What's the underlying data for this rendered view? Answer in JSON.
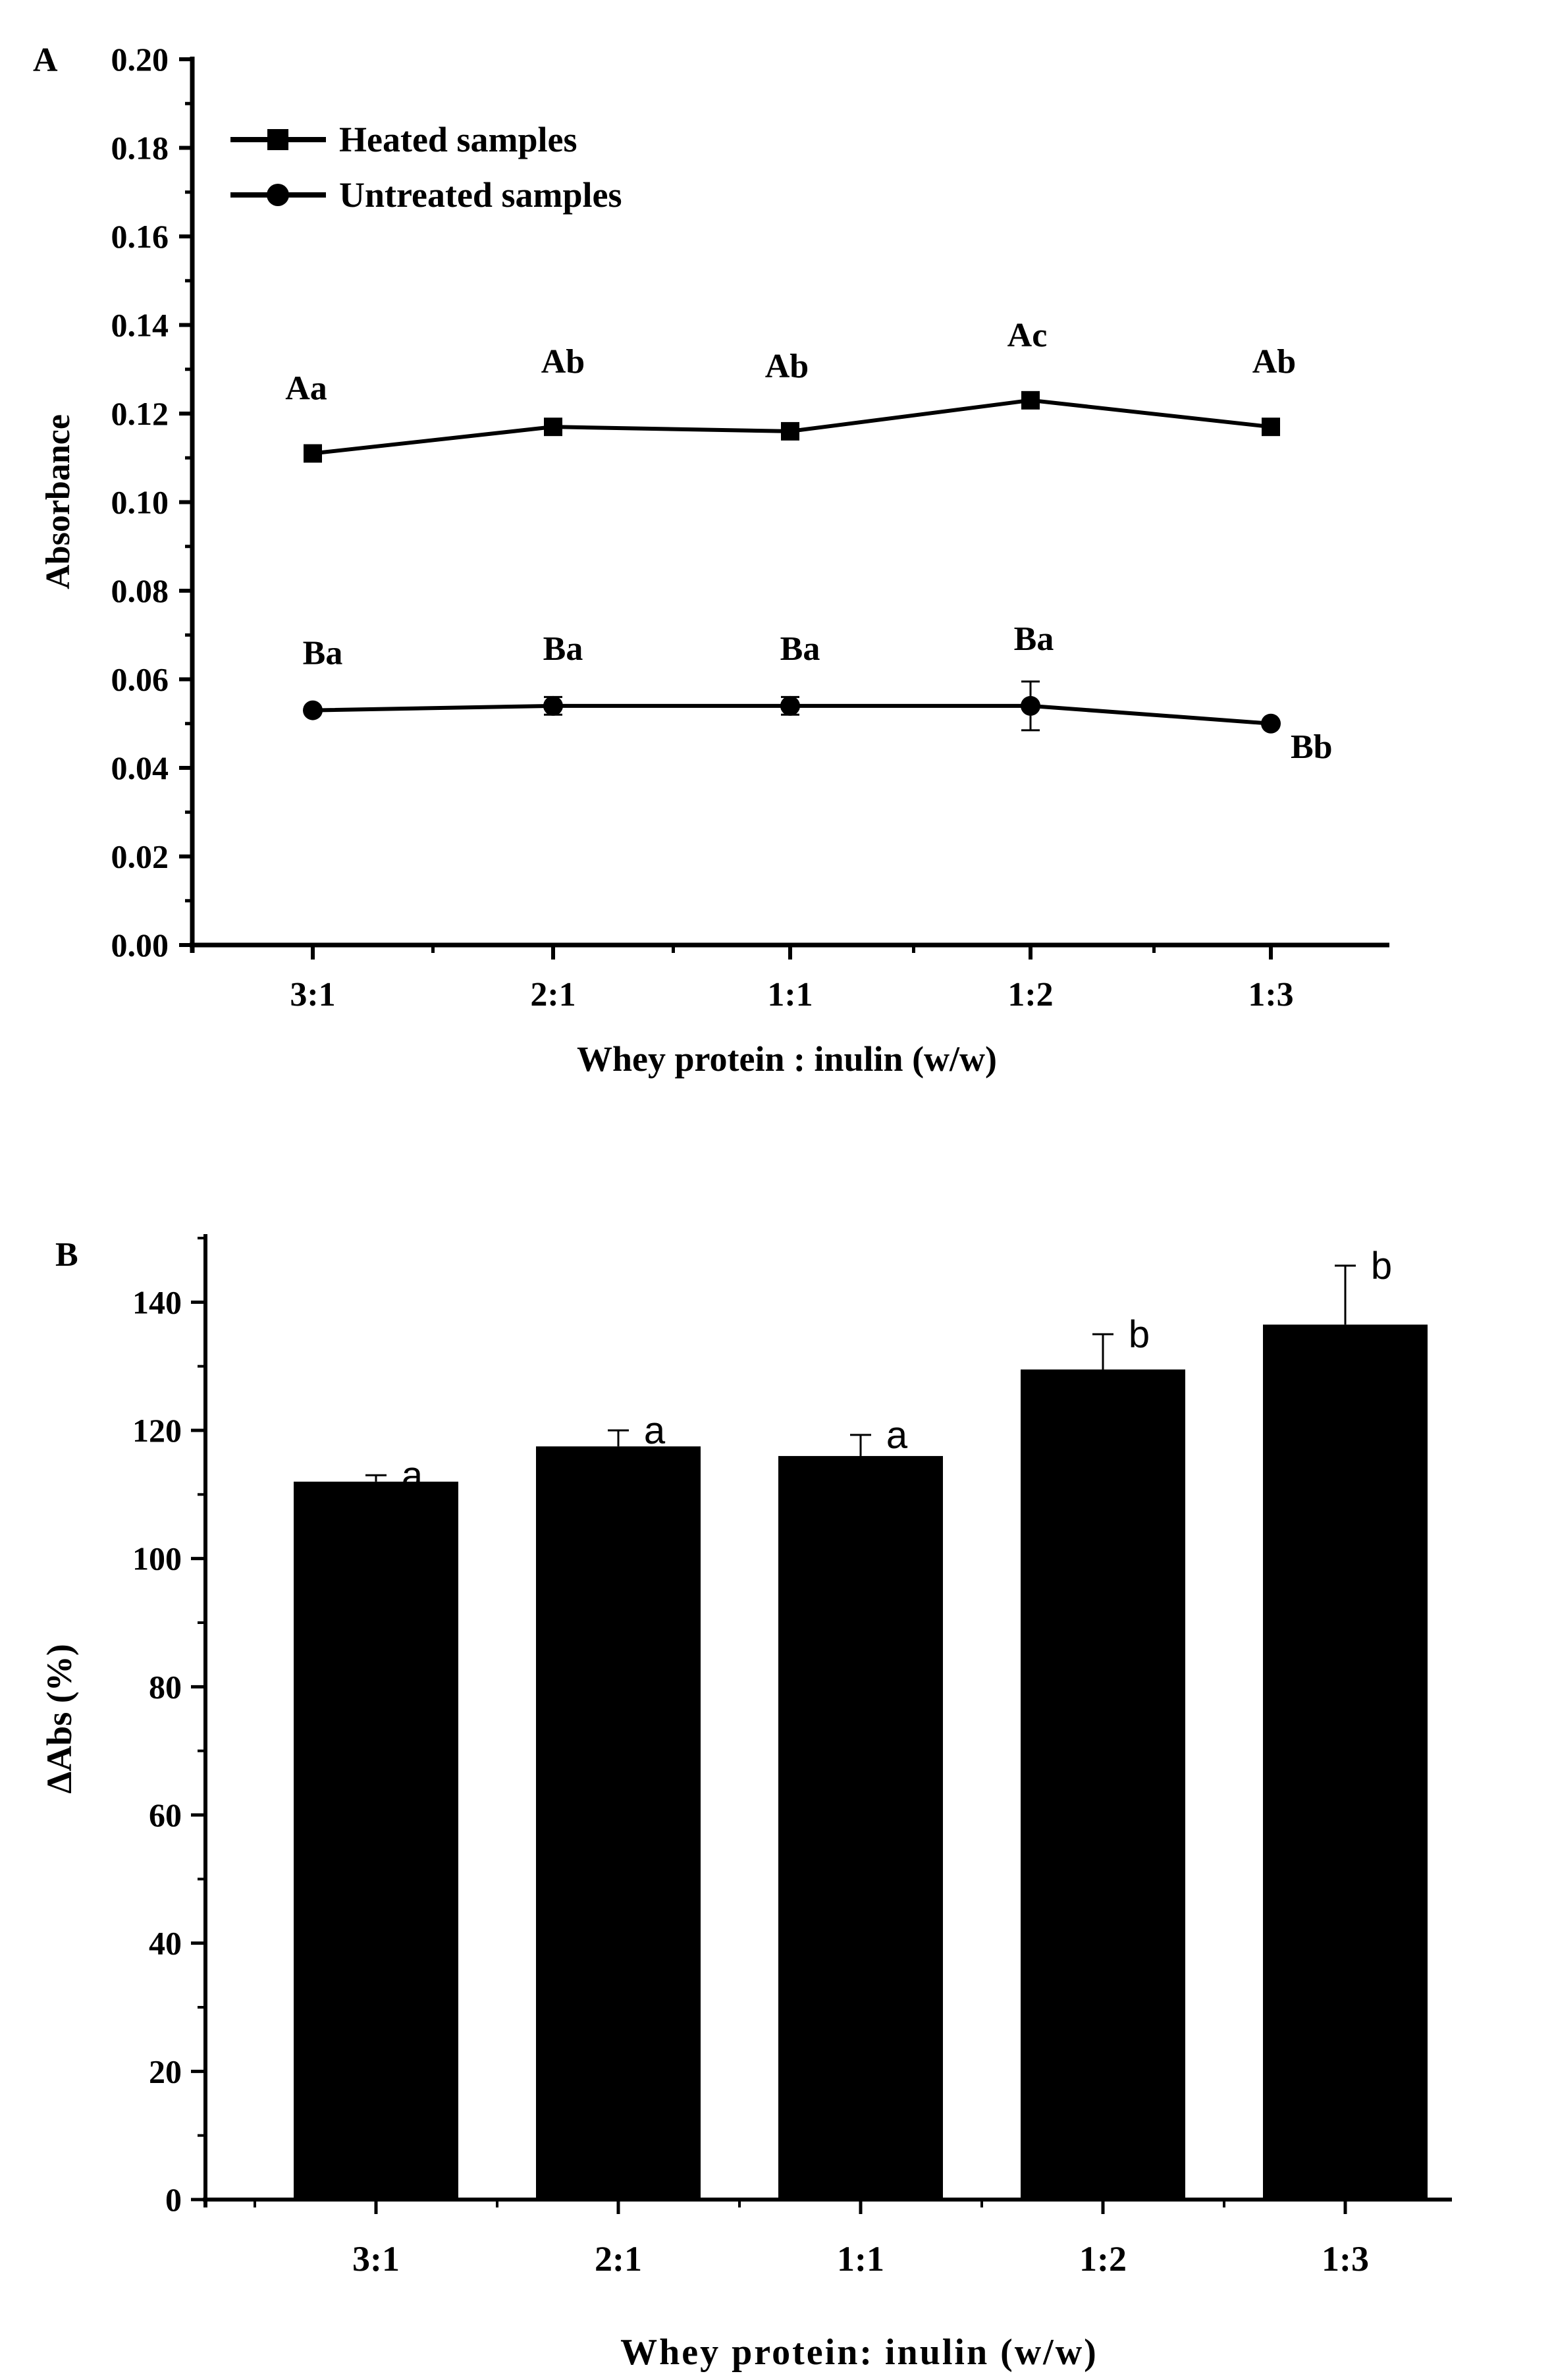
{
  "chart_data": [
    {
      "panel_label": "A",
      "type": "line",
      "xlabel": "Whey protein : inulin (w/w)",
      "ylabel": "Absorbance",
      "categories": [
        "3:1",
        "2:1",
        "1:1",
        "1:2",
        "1:3"
      ],
      "ylim": [
        0,
        0.2
      ],
      "yticks": [
        "0.00",
        "0.02",
        "0.04",
        "0.06",
        "0.08",
        "0.10",
        "0.12",
        "0.14",
        "0.16",
        "0.18",
        "0.20"
      ],
      "legend_position": "top-left",
      "series": [
        {
          "name": "Heated samples",
          "marker": "square",
          "values": [
            0.111,
            0.117,
            0.116,
            0.123,
            0.117
          ],
          "errors": [
            0,
            0,
            0,
            0,
            0
          ],
          "labels": [
            "Aa",
            "Ab",
            "Ab",
            "Ac",
            "Ab"
          ]
        },
        {
          "name": "Untreated samples",
          "marker": "circle",
          "values": [
            0.053,
            0.054,
            0.054,
            0.054,
            0.05
          ],
          "errors": [
            0.0005,
            0.002,
            0.002,
            0.0055,
            0
          ],
          "labels": [
            "Ba",
            "Ba",
            "Ba",
            "Ba",
            "Bb"
          ]
        }
      ]
    },
    {
      "panel_label": "B",
      "type": "bar",
      "xlabel": "Whey protein: inulin (w/w)",
      "ylabel": "ΔAbs (%)",
      "categories": [
        "3:1",
        "2:1",
        "1:1",
        "1:2",
        "1:3"
      ],
      "ylim": [
        0,
        150
      ],
      "yticks": [
        "0",
        "20",
        "40",
        "60",
        "80",
        "100",
        "120",
        "140"
      ],
      "values": [
        112,
        117.5,
        116,
        129.5,
        136.5
      ],
      "errors": [
        1,
        2.5,
        3.3,
        5.5,
        9.2
      ],
      "labels": [
        "a",
        "a",
        "a",
        "b",
        "b"
      ],
      "bar_color": "#000000"
    }
  ]
}
